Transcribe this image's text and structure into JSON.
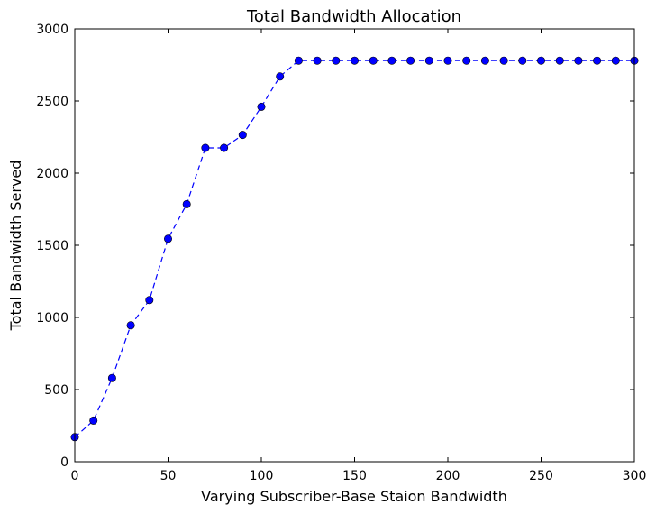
{
  "chart_data": {
    "type": "line",
    "title": "Total Bandwidth Allocation",
    "xlabel": "Varying Subscriber-Base Staion Bandwidth",
    "ylabel": "Total Bandwidth Served",
    "xlim": [
      0,
      300
    ],
    "ylim": [
      0,
      3000
    ],
    "xticks": [
      0,
      50,
      100,
      150,
      200,
      250,
      300
    ],
    "yticks": [
      0,
      500,
      1000,
      1500,
      2000,
      2500,
      3000
    ],
    "grid": false,
    "line_style": "dashed",
    "marker": "circle",
    "color": "#0000ff",
    "series": [
      {
        "x": [
          0,
          10,
          20,
          30,
          40,
          50,
          60,
          70,
          80,
          90,
          100,
          110,
          120,
          130,
          140,
          150,
          160,
          170,
          180,
          190,
          200,
          210,
          220,
          230,
          240,
          250,
          260,
          270,
          280,
          290,
          300
        ],
        "values": [
          170,
          285,
          580,
          945,
          1120,
          1545,
          1785,
          2175,
          2175,
          2265,
          2460,
          2670,
          2780,
          2780,
          2780,
          2780,
          2780,
          2780,
          2780,
          2780,
          2780,
          2780,
          2780,
          2780,
          2780,
          2780,
          2780,
          2780,
          2780,
          2780,
          2780
        ]
      }
    ]
  }
}
